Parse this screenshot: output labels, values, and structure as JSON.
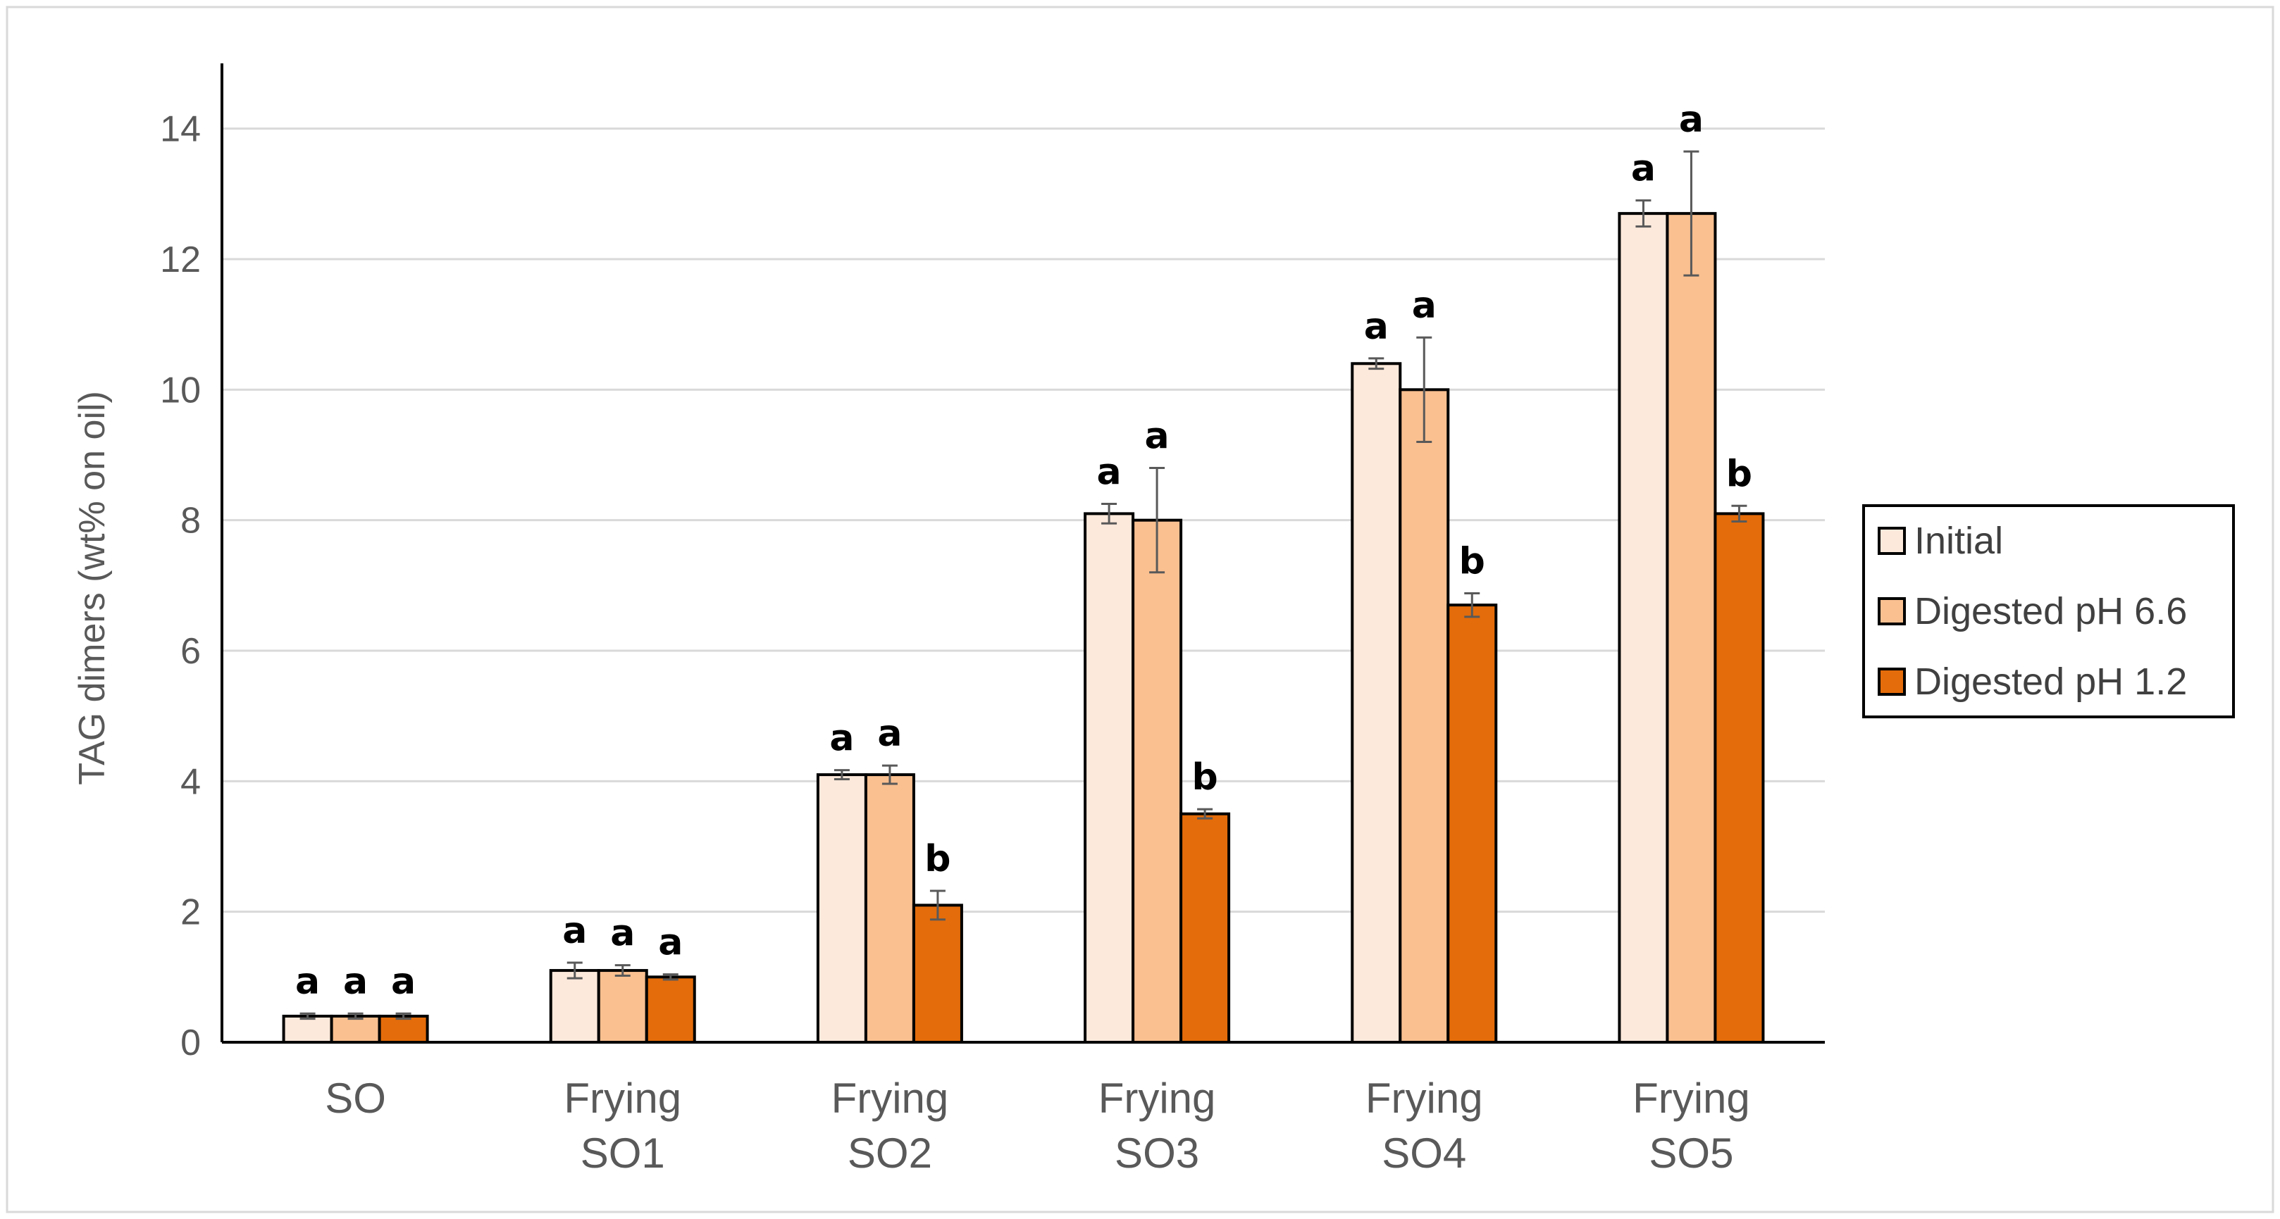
{
  "chart_data": {
    "type": "bar",
    "title": "",
    "xlabel": "",
    "ylabel": "TAG dimers (wt% on oil)",
    "ylim": [
      0,
      15
    ],
    "yticks": [
      0,
      2,
      4,
      6,
      8,
      10,
      12,
      14
    ],
    "grid": true,
    "legend_position": "right",
    "categories": [
      [
        "SO"
      ],
      [
        "Frying",
        "SO1"
      ],
      [
        "Frying",
        "SO2"
      ],
      [
        "Frying",
        "SO3"
      ],
      [
        "Frying",
        "SO4"
      ],
      [
        "Frying",
        "SO5"
      ]
    ],
    "series": [
      {
        "name": "Initial",
        "color": "#fde9db",
        "values": [
          0.4,
          1.1,
          4.1,
          8.1,
          10.4,
          12.7
        ],
        "errors": [
          0.04,
          0.12,
          0.07,
          0.15,
          0.08,
          0.2
        ],
        "labels": [
          "a",
          "a",
          "a",
          "a",
          "a",
          "a"
        ]
      },
      {
        "name": "Digested pH 6.6",
        "color": "#fac090",
        "values": [
          0.4,
          1.1,
          4.1,
          8.0,
          10.0,
          12.7
        ],
        "errors": [
          0.04,
          0.08,
          0.14,
          0.8,
          0.8,
          0.95
        ],
        "labels": [
          "a",
          "a",
          "a",
          "a",
          "a",
          "a"
        ]
      },
      {
        "name": "Digested pH 1.2",
        "color": "#e46c0a",
        "values": [
          0.4,
          1.0,
          2.1,
          3.5,
          6.7,
          8.1
        ],
        "errors": [
          0.04,
          0.04,
          0.22,
          0.07,
          0.18,
          0.12
        ],
        "labels": [
          "a",
          "a",
          "b",
          "b",
          "b",
          "b"
        ]
      }
    ]
  }
}
